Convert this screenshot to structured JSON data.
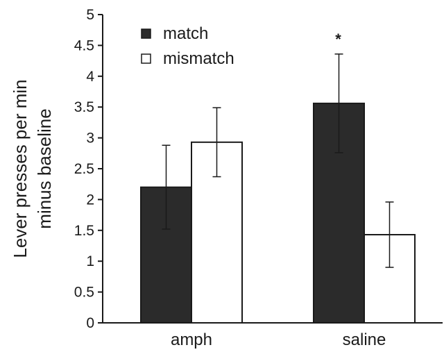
{
  "chart_data": {
    "type": "bar",
    "categories": [
      "amph",
      "saline"
    ],
    "series": [
      {
        "name": "match",
        "values": [
          2.2,
          3.56
        ],
        "error": [
          0.68,
          0.8
        ],
        "color": "#2b2b2b"
      },
      {
        "name": "mismatch",
        "values": [
          2.93,
          1.43
        ],
        "error": [
          0.56,
          0.53
        ],
        "color": "#ffffff"
      }
    ],
    "ylabel": [
      "Lever presses per min",
      "minus baseline"
    ],
    "xlabel": "",
    "ylim": [
      0,
      5
    ],
    "yticks": [
      0,
      0.5,
      1,
      1.5,
      2,
      2.5,
      3,
      3.5,
      4,
      4.5,
      5
    ],
    "grid": false,
    "legend_position": "top-left",
    "annotations": [
      {
        "category": "saline",
        "series": "match",
        "text": "*"
      }
    ]
  }
}
